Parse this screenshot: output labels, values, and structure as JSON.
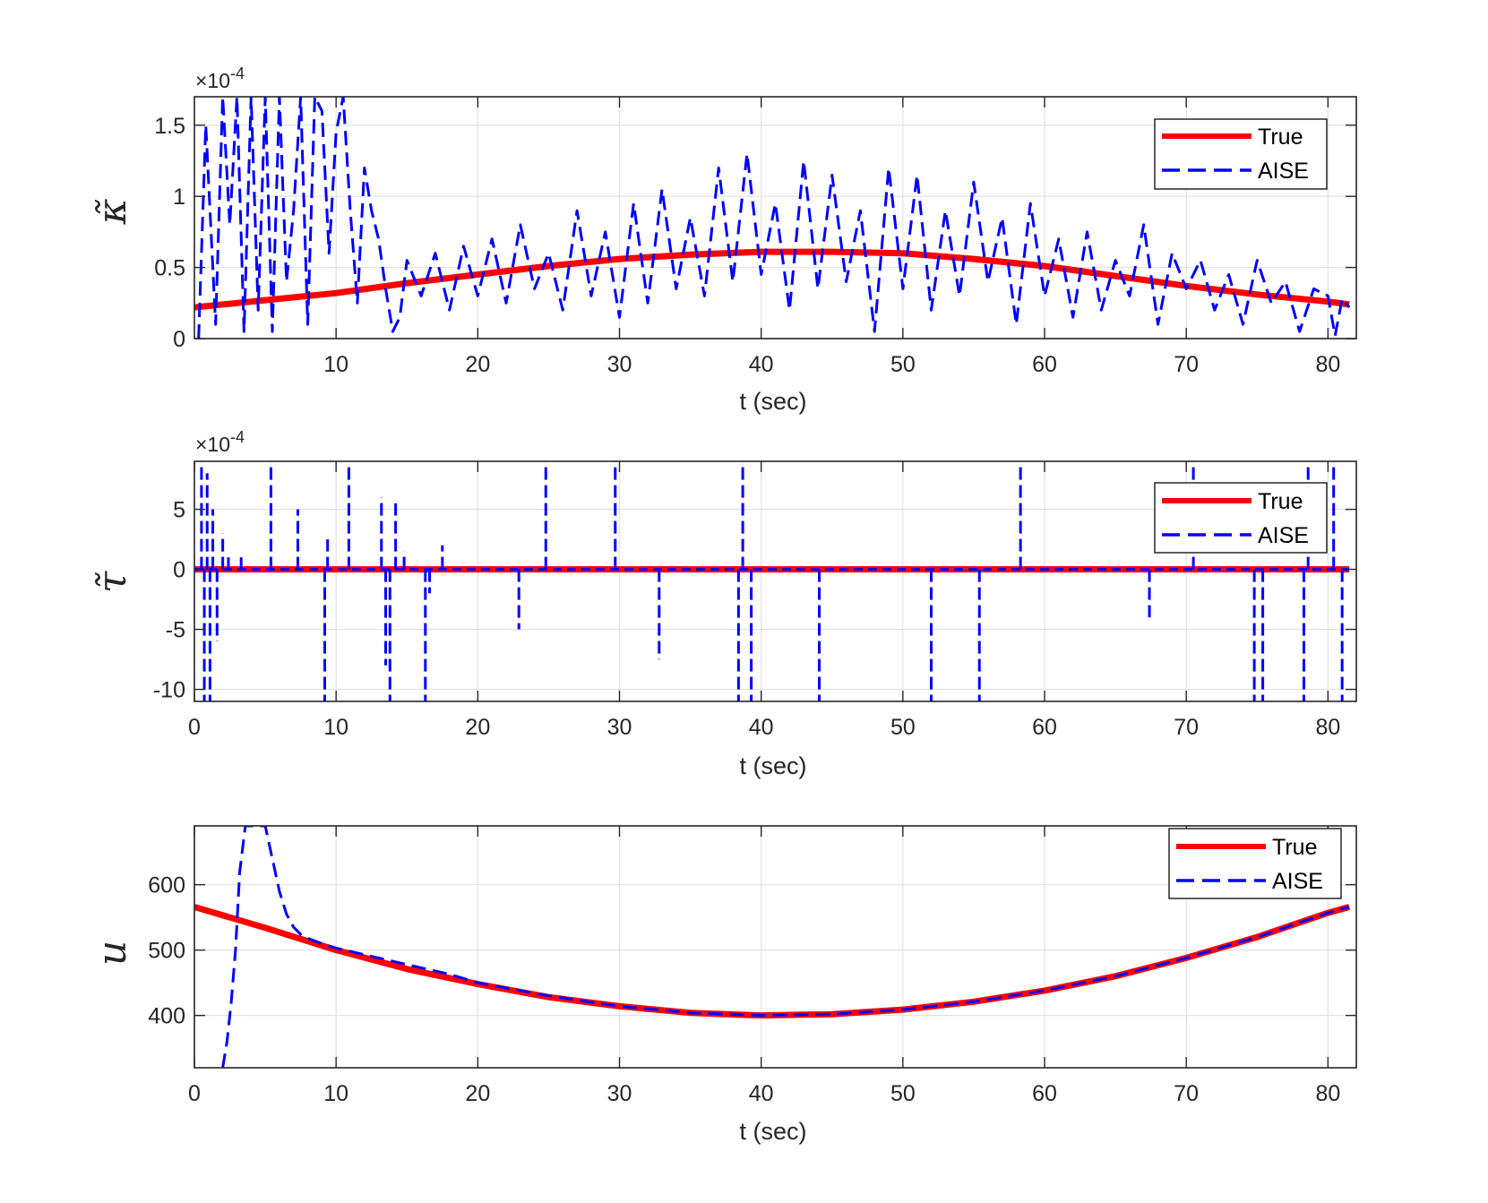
{
  "colors": {
    "true_line": "#ff0000",
    "aise_line": "#0000ff",
    "grid": "#e2e2e2",
    "axes": "#262626"
  },
  "chart_data": [
    {
      "type": "line",
      "ylabel": "κ̃",
      "xlabel": "t (sec)",
      "exponent_label": "×10",
      "exponent_power": "-4",
      "xlim": [
        0,
        82
      ],
      "ylim": [
        0,
        1.7
      ],
      "x_ticks": [
        10,
        20,
        30,
        40,
        50,
        60,
        70,
        80
      ],
      "x_tick_labels": [
        "10",
        "20",
        "30",
        "40",
        "50",
        "60",
        "70",
        "80"
      ],
      "y_ticks": [
        0,
        0.5,
        1,
        1.5
      ],
      "y_tick_labels": [
        "0",
        "0.5",
        "1",
        "1.5"
      ],
      "grid": true,
      "legend_position": "top-right",
      "series": [
        {
          "name": "True",
          "style": "solid",
          "x": [
            0,
            5,
            10,
            15,
            20,
            25,
            30,
            35,
            40,
            45,
            50,
            55,
            60,
            65,
            70,
            75,
            80,
            81.5
          ],
          "y": [
            0.22,
            0.27,
            0.32,
            0.39,
            0.45,
            0.51,
            0.56,
            0.59,
            0.61,
            0.61,
            0.6,
            0.56,
            0.51,
            0.44,
            0.37,
            0.31,
            0.26,
            0.24
          ]
        },
        {
          "name": "AISE",
          "style": "dashed",
          "x": [
            0.3,
            0.8,
            1.5,
            2,
            2.5,
            3,
            3.5,
            4,
            4.5,
            5,
            5.5,
            6,
            6.5,
            7,
            7.5,
            8,
            8.5,
            9,
            9.5,
            10,
            10.5,
            11,
            11.5,
            12,
            12.5,
            13,
            13.5,
            14,
            14.5,
            15,
            16,
            17,
            18,
            19,
            20,
            21,
            22,
            23,
            24,
            25,
            26,
            27,
            28,
            29,
            30,
            31,
            32,
            33,
            34,
            35,
            36,
            37,
            38,
            39,
            40,
            41,
            42,
            43,
            44,
            45,
            46,
            47,
            48,
            49,
            50,
            51,
            52,
            53,
            54,
            55,
            56,
            57,
            58,
            59,
            60,
            61,
            62,
            63,
            64,
            65,
            66,
            67,
            68,
            69,
            70,
            71,
            72,
            73,
            74,
            75,
            76,
            77,
            78,
            79,
            80,
            80.5,
            81,
            81.5
          ],
          "y": [
            0,
            1.5,
            0.1,
            1.7,
            0.8,
            1.7,
            0.05,
            1.7,
            0.2,
            1.7,
            0.05,
            1.7,
            0.4,
            0.9,
            1.7,
            0.1,
            1.7,
            1.6,
            0.6,
            1.45,
            1.7,
            0.9,
            0.25,
            1.2,
            0.9,
            0.7,
            0.35,
            0.05,
            0.15,
            0.55,
            0.3,
            0.6,
            0.2,
            0.65,
            0.3,
            0.7,
            0.25,
            0.8,
            0.35,
            0.6,
            0.2,
            0.9,
            0.3,
            0.75,
            0.15,
            0.95,
            0.25,
            1.05,
            0.35,
            0.85,
            0.3,
            1.2,
            0.4,
            1.3,
            0.45,
            0.95,
            0.2,
            1.25,
            0.35,
            1.15,
            0.4,
            0.9,
            0.05,
            1.2,
            0.35,
            1.15,
            0.2,
            0.9,
            0.3,
            1.1,
            0.4,
            0.85,
            0.1,
            0.95,
            0.3,
            0.7,
            0.15,
            0.75,
            0.2,
            0.55,
            0.3,
            0.8,
            0.1,
            0.6,
            0.35,
            0.55,
            0.2,
            0.45,
            0.1,
            0.55,
            0.25,
            0.4,
            0.05,
            0.35,
            0.3,
            0.02,
            0.28,
            0.22
          ]
        }
      ],
      "legend": [
        "True",
        "AISE"
      ]
    },
    {
      "type": "line",
      "ylabel": "τ̃",
      "xlabel": "t (sec)",
      "exponent_label": "×10",
      "exponent_power": "-4",
      "xlim": [
        0,
        82
      ],
      "ylim": [
        -11,
        9
      ],
      "x_ticks": [
        0,
        10,
        20,
        30,
        40,
        50,
        60,
        70,
        80
      ],
      "x_tick_labels": [
        "0",
        "10",
        "20",
        "30",
        "40",
        "50",
        "60",
        "70",
        "80"
      ],
      "y_ticks": [
        -10,
        -5,
        0,
        5
      ],
      "y_tick_labels": [
        "-10",
        "-5",
        "0",
        "5"
      ],
      "grid": true,
      "legend_position": "top-right",
      "series": [
        {
          "name": "True",
          "style": "solid",
          "x": [
            0,
            81.5
          ],
          "y": [
            0,
            0
          ]
        },
        {
          "name": "AISE",
          "style": "dashed",
          "spikes": [
            [
              0.5,
              9
            ],
            [
              0.7,
              -11
            ],
            [
              0.9,
              8
            ],
            [
              1.1,
              -11
            ],
            [
              1.3,
              5
            ],
            [
              1.6,
              -6
            ],
            [
              2.0,
              3
            ],
            [
              2.4,
              1
            ],
            [
              3.3,
              1
            ],
            [
              5.4,
              9
            ],
            [
              7.3,
              5
            ],
            [
              9.2,
              -11
            ],
            [
              9.4,
              2.5
            ],
            [
              10.9,
              9
            ],
            [
              13.2,
              6
            ],
            [
              13.5,
              -8
            ],
            [
              13.8,
              -11
            ],
            [
              14.2,
              5.5
            ],
            [
              14.8,
              1.5
            ],
            [
              16.3,
              -11
            ],
            [
              16.6,
              -2
            ],
            [
              17.5,
              2
            ],
            [
              22.9,
              -5
            ],
            [
              24.8,
              9
            ],
            [
              29.7,
              9
            ],
            [
              32.8,
              -7.5
            ],
            [
              38.4,
              -11
            ],
            [
              38.7,
              9
            ],
            [
              39.3,
              -11
            ],
            [
              44.1,
              -11
            ],
            [
              52.0,
              -11
            ],
            [
              55.4,
              -11
            ],
            [
              58.3,
              9
            ],
            [
              67.4,
              -4
            ],
            [
              70.5,
              9
            ],
            [
              74.8,
              -11
            ],
            [
              75.4,
              -11
            ],
            [
              78.3,
              -11
            ],
            [
              78.6,
              9
            ],
            [
              80.4,
              9
            ],
            [
              81.0,
              -11
            ]
          ]
        }
      ],
      "legend": [
        "True",
        "AISE"
      ]
    },
    {
      "type": "line",
      "ylabel": "u",
      "xlabel": "t (sec)",
      "xlim": [
        0,
        82
      ],
      "ylim": [
        320,
        690
      ],
      "x_ticks": [
        0,
        10,
        20,
        30,
        40,
        50,
        60,
        70,
        80
      ],
      "x_tick_labels": [
        "0",
        "10",
        "20",
        "30",
        "40",
        "50",
        "60",
        "70",
        "80"
      ],
      "y_ticks": [
        400,
        500,
        600
      ],
      "y_tick_labels": [
        "400",
        "500",
        "600"
      ],
      "grid": true,
      "legend_position": "top-right",
      "series": [
        {
          "name": "True",
          "style": "solid",
          "x": [
            0,
            5,
            10,
            15,
            20,
            25,
            30,
            35,
            40,
            45,
            50,
            55,
            60,
            65,
            70,
            75,
            80,
            81.5
          ],
          "y": [
            566,
            534,
            500,
            471,
            448,
            428,
            414,
            404,
            400,
            402,
            409,
            421,
            438,
            460,
            488,
            520,
            557,
            566
          ]
        },
        {
          "name": "AISE",
          "style": "dashed",
          "x": [
            2.0,
            2.3,
            2.6,
            2.9,
            3.2,
            3.6,
            4.0,
            4.5,
            5.0,
            5.3,
            5.6,
            6.0,
            6.5,
            7.0,
            7.5,
            8.0,
            9.0,
            10.0,
            11.0,
            12.0,
            13.0,
            14.0,
            16.0,
            18.0,
            20.0,
            25.0,
            30.0,
            35.0,
            40.0,
            45.0,
            50.0,
            55.0,
            60.0,
            65.0,
            70.0,
            75.0,
            80.0,
            81.5
          ],
          "y": [
            320,
            360,
            420,
            500,
            620,
            690,
            690,
            690,
            690,
            660,
            630,
            590,
            555,
            535,
            524,
            518,
            510,
            503,
            498,
            493,
            488,
            483,
            473,
            463,
            450,
            430,
            414,
            404,
            400,
            402,
            409,
            421,
            438,
            460,
            488,
            520,
            557,
            566
          ]
        }
      ],
      "legend": [
        "True",
        "AISE"
      ]
    }
  ]
}
